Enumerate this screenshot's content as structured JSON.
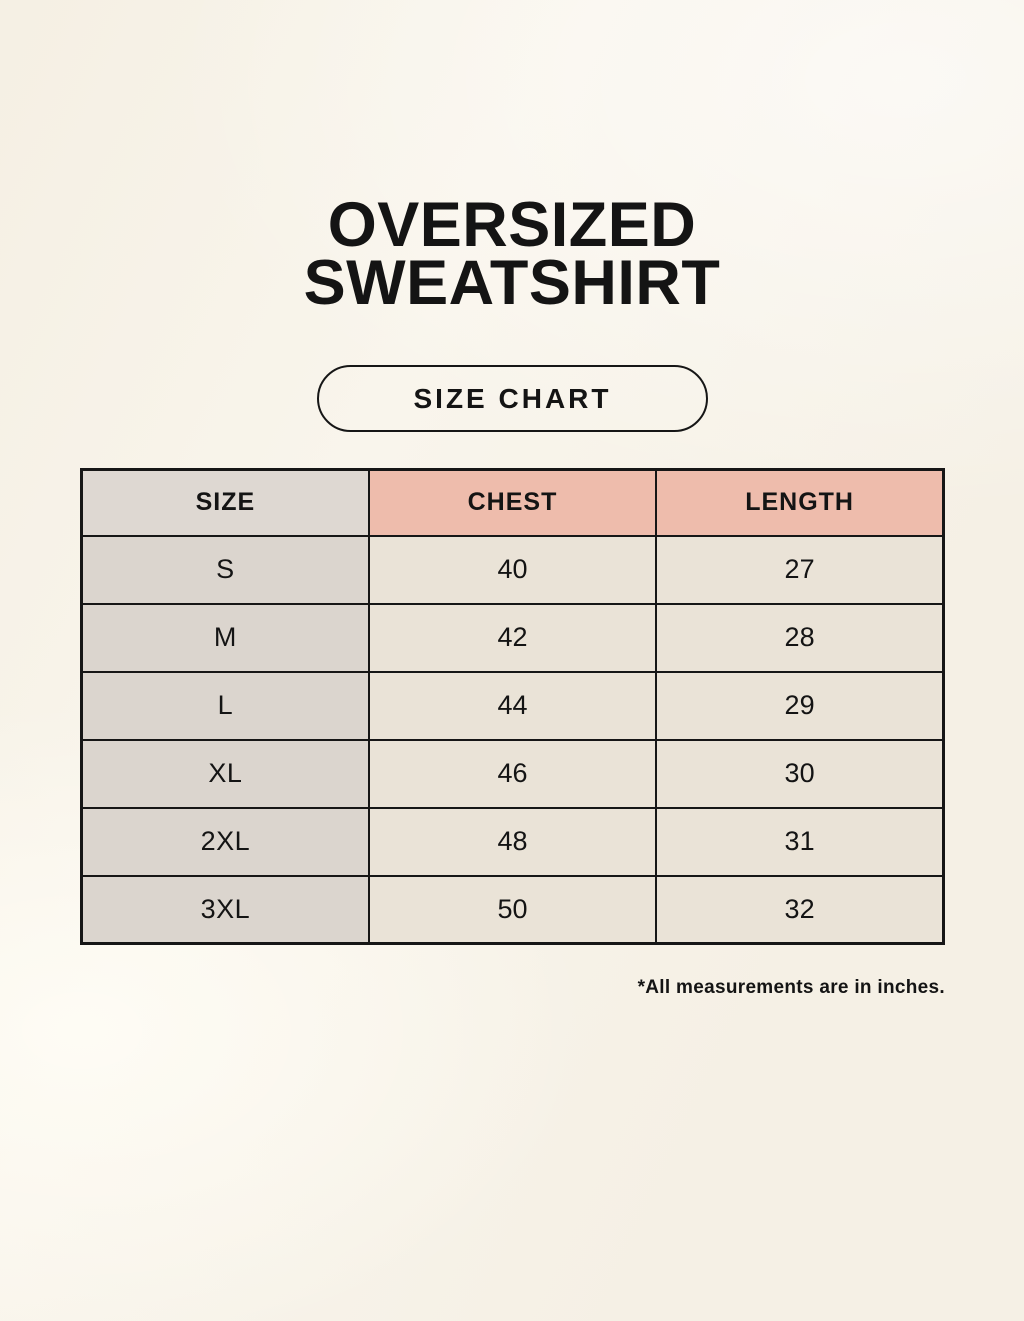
{
  "header": {
    "title_line1": "OVERSIZED",
    "title_line2": "SWEATSHIRT",
    "badge_label": "SIZE CHART"
  },
  "table": {
    "headers": [
      "SIZE",
      "CHEST",
      "LENGTH"
    ],
    "rows": [
      {
        "size": "S",
        "chest": "40",
        "length": "27"
      },
      {
        "size": "M",
        "chest": "42",
        "length": "28"
      },
      {
        "size": "L",
        "chest": "44",
        "length": "29"
      },
      {
        "size": "XL",
        "chest": "46",
        "length": "30"
      },
      {
        "size": "2XL",
        "chest": "48",
        "length": "31"
      },
      {
        "size": "3XL",
        "chest": "50",
        "length": "32"
      }
    ]
  },
  "footnote": "*All measurements are in inches.",
  "colors": {
    "page_background": "#f9f5ec",
    "header_accent_pink": "#eebcac",
    "size_header_gray": "#ded8d2",
    "size_cell_gray": "#dbd5ce",
    "data_cell_cream": "#eae3d7",
    "border": "#161616",
    "text": "#141414"
  },
  "chart_data": {
    "type": "table",
    "title": "OVERSIZED SWEATSHIRT",
    "subtitle": "SIZE CHART",
    "columns": [
      "SIZE",
      "CHEST",
      "LENGTH"
    ],
    "rows": [
      [
        "S",
        40,
        27
      ],
      [
        "M",
        42,
        28
      ],
      [
        "L",
        44,
        29
      ],
      [
        "XL",
        46,
        30
      ],
      [
        "2XL",
        48,
        31
      ],
      [
        "3XL",
        50,
        32
      ]
    ],
    "units": "inches",
    "note": "*All measurements are in inches."
  }
}
